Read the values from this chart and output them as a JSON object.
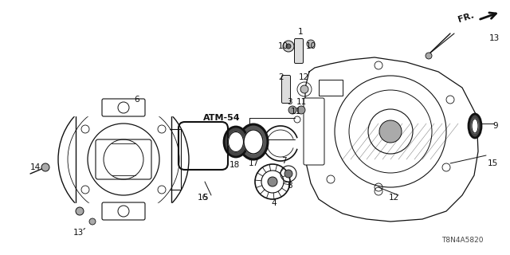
{
  "background_color": "#ffffff",
  "line_color": "#111111",
  "part_id": "T8N4A5820",
  "fig_width": 6.4,
  "fig_height": 3.2,
  "dpi": 100
}
